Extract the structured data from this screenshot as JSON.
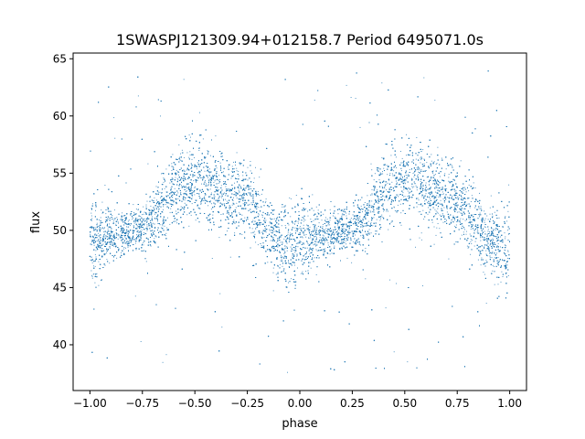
{
  "chart_data": {
    "type": "scatter",
    "title": "1SWASPJ121309.94+012158.7 Period 6495071.0s",
    "xlabel": "phase",
    "ylabel": "flux",
    "xlim": [
      -1.08,
      1.08
    ],
    "ylim": [
      36.0,
      65.5
    ],
    "grid": false,
    "legend": "none",
    "marker_color": "#1f77b4",
    "x_ticks": [
      -1.0,
      -0.75,
      -0.5,
      -0.25,
      0.0,
      0.25,
      0.5,
      0.75,
      1.0
    ],
    "x_tick_labels": [
      "−1.00",
      "−0.75",
      "−0.50",
      "−0.25",
      "0.00",
      "0.25",
      "0.50",
      "0.75",
      "1.00"
    ],
    "y_ticks": [
      40,
      45,
      50,
      55,
      60,
      65
    ],
    "y_tick_labels": [
      "40",
      "45",
      "50",
      "55",
      "60",
      "65"
    ],
    "series": [
      {
        "note": "phase-folded light curve, dense scatter of small points; mean flux profile repeats with period 1 in phase",
        "mean_curve": {
          "phase": [
            -1.0,
            -0.95,
            -0.9,
            -0.85,
            -0.8,
            -0.75,
            -0.7,
            -0.65,
            -0.6,
            -0.55,
            -0.5,
            -0.45,
            -0.4,
            -0.35,
            -0.3,
            -0.25,
            -0.2,
            -0.15,
            -0.1,
            -0.05,
            0.0,
            0.05,
            0.1,
            0.15,
            0.2,
            0.25,
            0.3,
            0.35,
            0.4,
            0.45,
            0.5,
            0.55,
            0.6,
            0.65,
            0.7,
            0.75,
            0.8,
            0.85,
            0.9,
            0.95,
            1.0
          ],
          "flux": [
            48.5,
            49.2,
            49.6,
            49.8,
            50.0,
            50.3,
            50.8,
            52.5,
            53.6,
            54.0,
            54.2,
            54.4,
            53.6,
            53.2,
            53.0,
            52.6,
            51.2,
            50.2,
            49.0,
            48.6,
            48.6,
            49.0,
            49.4,
            49.8,
            50.0,
            50.3,
            50.8,
            52.5,
            53.6,
            54.0,
            54.2,
            54.4,
            53.6,
            53.2,
            53.0,
            52.6,
            51.2,
            50.2,
            49.0,
            48.6,
            48.5
          ],
          "spread": [
            2.2,
            1.6,
            1.3,
            1.1,
            1.1,
            1.1,
            1.4,
            1.8,
            1.9,
            1.9,
            1.8,
            1.8,
            1.9,
            1.9,
            1.9,
            1.8,
            1.9,
            1.6,
            1.6,
            1.9,
            2.0,
            1.6,
            1.3,
            1.1,
            1.1,
            1.1,
            1.4,
            1.8,
            1.9,
            1.9,
            1.8,
            1.8,
            1.9,
            1.9,
            1.9,
            1.8,
            1.9,
            1.6,
            1.6,
            1.9,
            2.2
          ]
        },
        "outlier_range": [
          37.5,
          64.0
        ],
        "point_count_estimate": 14000
      }
    ]
  }
}
